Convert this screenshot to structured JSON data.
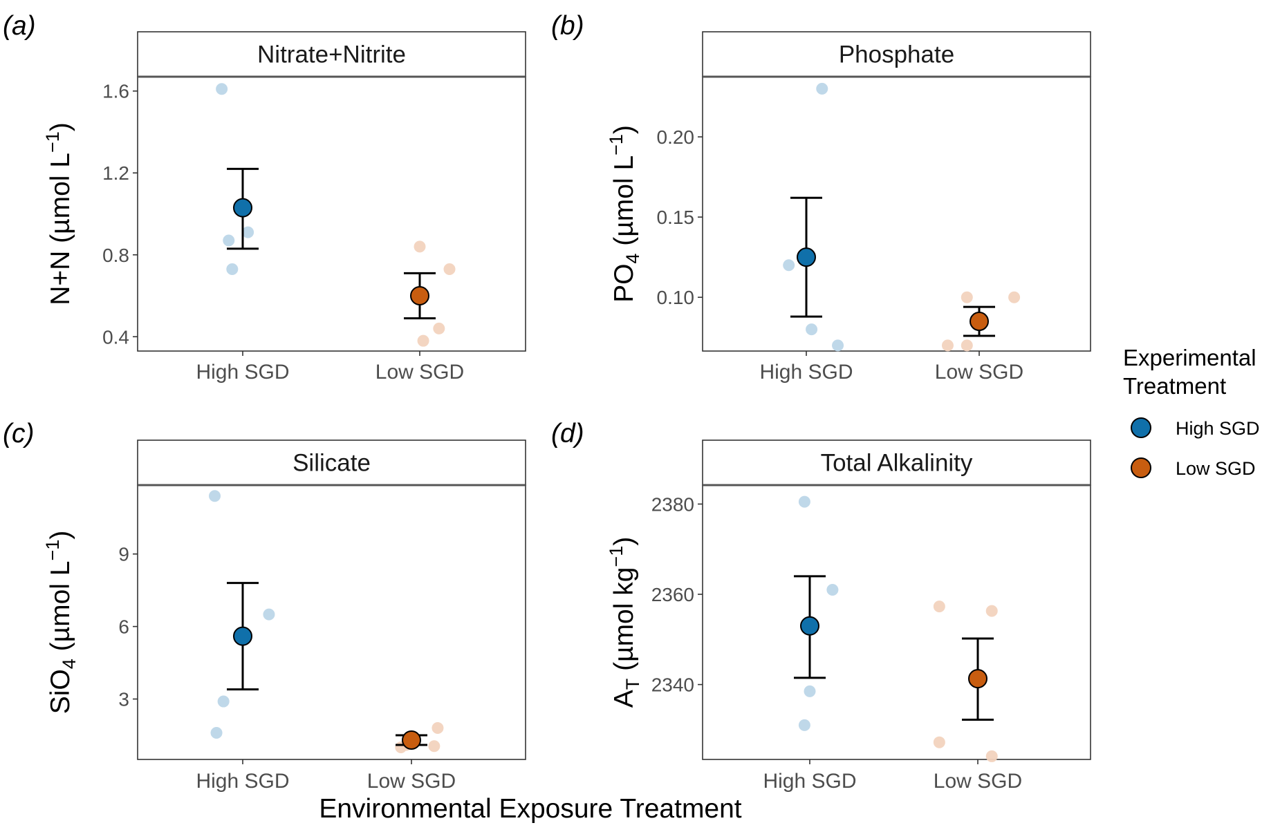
{
  "figure": {
    "x_title": "Environmental Exposure Treatment",
    "legend": {
      "title_lines": [
        "Experimental",
        "Treatment"
      ],
      "items": [
        {
          "label": "High SGD",
          "color": "#1070AA"
        },
        {
          "label": "Low SGD",
          "color": "#C85D10"
        }
      ]
    },
    "colors": {
      "high_mean": "#1070AA",
      "low_mean": "#C85D10",
      "high_raw": "#BCD6E8",
      "low_raw": "#F3D3BE",
      "strip_fill": "#ffffff",
      "border": "#333333"
    }
  },
  "chart_data": [
    {
      "type": "scatter",
      "panel_label": "(a)",
      "title": "Nitrate+Nitrite",
      "ylabel_main": "N+N (µmol L",
      "ylabel_sub": "",
      "ylabel_tail": " (µmol L",
      "ylabel_prefix": "N+N",
      "ylabel_sup": "−1",
      "ylabel_close": ")",
      "ylim": [
        0.33,
        1.67
      ],
      "y_ticks": [
        0.4,
        0.8,
        1.2,
        1.6
      ],
      "y_tick_labels": [
        "0.4",
        "0.8",
        "1.2",
        "1.6"
      ],
      "categories": [
        "High SGD",
        "Low SGD"
      ],
      "series": [
        {
          "name": "High SGD",
          "mean": 1.03,
          "error_low": 0.83,
          "error_high": 1.22,
          "raw_points": [
            {
              "x": -0.12,
              "y": 1.61
            },
            {
              "x": -0.08,
              "y": 0.87
            },
            {
              "x": 0.03,
              "y": 0.91
            },
            {
              "x": -0.06,
              "y": 0.73
            }
          ]
        },
        {
          "name": "Low SGD",
          "mean": 0.6,
          "error_low": 0.49,
          "error_high": 0.71,
          "raw_points": [
            {
              "x": 0.0,
              "y": 0.84
            },
            {
              "x": 0.17,
              "y": 0.73
            },
            {
              "x": 0.11,
              "y": 0.44
            },
            {
              "x": 0.02,
              "y": 0.38
            }
          ]
        }
      ]
    },
    {
      "type": "scatter",
      "panel_label": "(b)",
      "title": "Phosphate",
      "ylabel_prefix": "PO",
      "ylabel_sub": "4",
      "ylabel_tail": " (µmol L",
      "ylabel_sup": "−1",
      "ylabel_close": ")",
      "ylim": [
        0.0665,
        0.2375
      ],
      "y_ticks": [
        0.1,
        0.15,
        0.2
      ],
      "y_tick_labels": [
        "0.10",
        "0.15",
        "0.20"
      ],
      "categories": [
        "High SGD",
        "Low SGD"
      ],
      "series": [
        {
          "name": "High SGD",
          "mean": 0.125,
          "error_low": 0.088,
          "error_high": 0.162,
          "raw_points": [
            {
              "x": 0.09,
              "y": 0.23
            },
            {
              "x": -0.1,
              "y": 0.12
            },
            {
              "x": 0.03,
              "y": 0.08
            },
            {
              "x": 0.18,
              "y": 0.07
            }
          ]
        },
        {
          "name": "Low SGD",
          "mean": 0.085,
          "error_low": 0.076,
          "error_high": 0.094,
          "raw_points": [
            {
              "x": -0.07,
              "y": 0.1
            },
            {
              "x": 0.2,
              "y": 0.1
            },
            {
              "x": -0.18,
              "y": 0.07
            },
            {
              "x": -0.07,
              "y": 0.07
            }
          ]
        }
      ]
    },
    {
      "type": "scatter",
      "panel_label": "(c)",
      "title": "Silicate",
      "ylabel_prefix": "SiO",
      "ylabel_sub": "4",
      "ylabel_tail": " (µmol L",
      "ylabel_sup": "−1",
      "ylabel_close": ")",
      "ylim": [
        0.5,
        11.85
      ],
      "y_ticks": [
        3,
        6,
        9
      ],
      "y_tick_labels": [
        "3",
        "6",
        "9"
      ],
      "categories": [
        "High SGD",
        "Low SGD"
      ],
      "series": [
        {
          "name": "High SGD",
          "mean": 5.6,
          "error_low": 3.4,
          "error_high": 7.8,
          "raw_points": [
            {
              "x": -0.16,
              "y": 11.4
            },
            {
              "x": 0.15,
              "y": 6.5
            },
            {
              "x": -0.11,
              "y": 2.9
            },
            {
              "x": -0.15,
              "y": 1.6
            }
          ]
        },
        {
          "name": "Low SGD",
          "mean": 1.3,
          "error_low": 1.1,
          "error_high": 1.5,
          "raw_points": [
            {
              "x": 0.15,
              "y": 1.8
            },
            {
              "x": -0.03,
              "y": 1.1
            },
            {
              "x": 0.13,
              "y": 1.05
            },
            {
              "x": -0.06,
              "y": 1.0
            }
          ]
        }
      ]
    },
    {
      "type": "scatter",
      "panel_label": "(d)",
      "title": "Total Alkalinity",
      "ylabel_prefix": "A",
      "ylabel_sub": "T",
      "ylabel_tail": " (µmol kg",
      "ylabel_sup": "−1",
      "ylabel_close": ")",
      "ylim": [
        2323.4,
        2384.2
      ],
      "y_ticks": [
        2340,
        2360,
        2380
      ],
      "y_tick_labels": [
        "2340",
        "2360",
        "2380"
      ],
      "categories": [
        "High SGD",
        "Low SGD"
      ],
      "series": [
        {
          "name": "High SGD",
          "mean": 2353,
          "error_low": 2341.5,
          "error_high": 2364,
          "raw_points": [
            {
              "x": -0.03,
              "y": 2380.5
            },
            {
              "x": 0.13,
              "y": 2361
            },
            {
              "x": 0.0,
              "y": 2338.5
            },
            {
              "x": -0.03,
              "y": 2331
            }
          ]
        },
        {
          "name": "Low SGD",
          "mean": 2341.3,
          "error_low": 2332.2,
          "error_high": 2350.2,
          "raw_points": [
            {
              "x": -0.22,
              "y": 2357.3
            },
            {
              "x": 0.08,
              "y": 2356.3
            },
            {
              "x": -0.22,
              "y": 2327.2
            },
            {
              "x": 0.08,
              "y": 2324.1
            }
          ]
        }
      ]
    }
  ]
}
